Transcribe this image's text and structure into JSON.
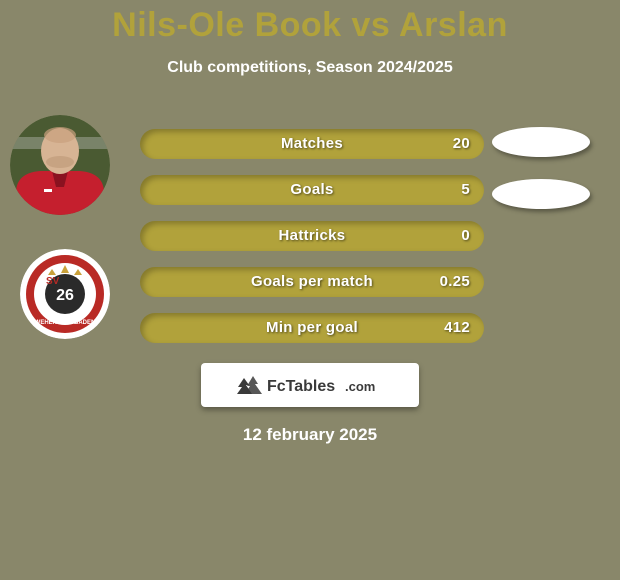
{
  "colors": {
    "background": "#89876a",
    "title": "#b1a23b",
    "subtitle_text": "#ffffff",
    "bar_fill": "#b1a23b",
    "bar_text": "#ffffff",
    "pill_fill": "#ffffff",
    "footer_badge_bg": "#ffffff",
    "footer_badge_text": "#3a3a3a",
    "footer_date_text": "#ffffff",
    "avatar_shirt": "#c51f2e",
    "avatar_bg": "#4a5a32",
    "avatar_skin": "#d7b494",
    "crest_outer": "#ffffff",
    "crest_ring": "#b92a25",
    "crest_inner": "#ffffff",
    "crest_center": "#2a2a2a",
    "crest_gold": "#c9a13a"
  },
  "header": {
    "title": "Nils-Ole Book vs Arslan",
    "subtitle": "Club competitions, Season 2024/2025"
  },
  "stats": [
    {
      "label": "Matches",
      "value": "20",
      "has_right_pill": true
    },
    {
      "label": "Goals",
      "value": "5",
      "has_right_pill": true
    },
    {
      "label": "Hattricks",
      "value": "0",
      "has_right_pill": false
    },
    {
      "label": "Goals per match",
      "value": "0.25",
      "has_right_pill": false
    },
    {
      "label": "Min per goal",
      "value": "412",
      "has_right_pill": false
    }
  ],
  "footer": {
    "brand_text": "FcTables.com",
    "date": "12 february 2025"
  }
}
